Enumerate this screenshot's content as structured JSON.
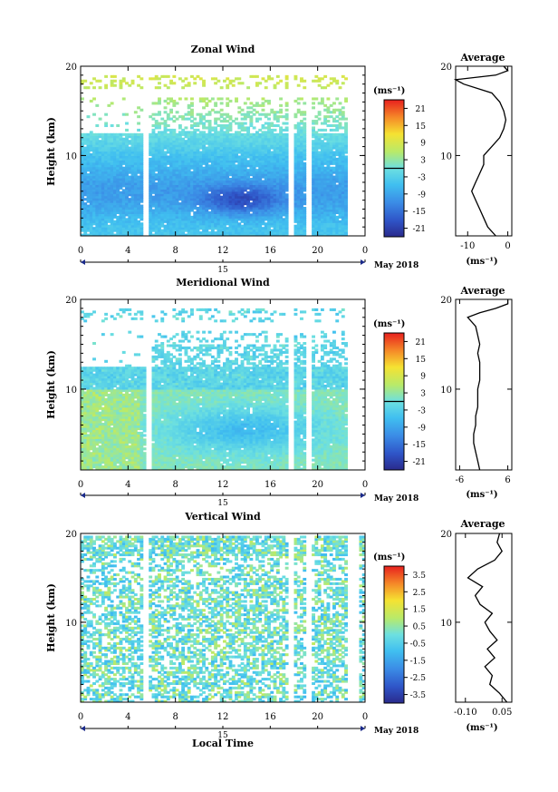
{
  "figure": {
    "xlabel": "Local Time",
    "date_label": "May 2018",
    "date_day": "15"
  },
  "chart_data": [
    {
      "type": "heatmap",
      "title": "Zonal Wind",
      "ylabel": "Height (km)",
      "xlabel": "",
      "unit_label": "(ms⁻¹)",
      "x_ticks": [
        "0",
        "4",
        "8",
        "12",
        "16",
        "20",
        "0"
      ],
      "y_ticks": [
        "10",
        "20"
      ],
      "xlim": [
        0,
        24
      ],
      "ylim": [
        1,
        20
      ],
      "colorbar_ticks": [
        "21",
        "15",
        "9",
        "3",
        "-3",
        "-9",
        "-15",
        "-21"
      ],
      "colorbar_range": [
        -24,
        24
      ],
      "contour_level": 0,
      "description_values": {
        "low_altitude_range_ms": [
          -21,
          0
        ],
        "core_minimum_ms": -21,
        "core_height_km": 5,
        "core_time_h": 13.5
      },
      "data_gaps_hours": [
        [
          5.2,
          5.7
        ],
        [
          17.5,
          17.9
        ],
        [
          19.0,
          19.5
        ],
        [
          22.4,
          24
        ]
      ],
      "average": {
        "title": "Average",
        "xlabel": "(ms⁻¹)",
        "x_ticks": [
          "-10",
          "0"
        ],
        "y_ticks": [
          "10",
          "20"
        ],
        "xlim": [
          -13,
          1
        ],
        "ylim": [
          1,
          20
        ],
        "profile": {
          "height": [
            1,
            2,
            3,
            4,
            5,
            6,
            7,
            8,
            9,
            10,
            11,
            12,
            13,
            14,
            15,
            16,
            17,
            18,
            18.5,
            19,
            19.5,
            20
          ],
          "value": [
            -3,
            -5,
            -6,
            -7,
            -8,
            -9,
            -8,
            -7,
            -6,
            -6,
            -4,
            -2,
            -1,
            -0.5,
            -1,
            -2,
            -4,
            -11,
            -13,
            -3,
            0,
            -1
          ]
        }
      }
    },
    {
      "type": "heatmap",
      "title": "Meridional Wind",
      "ylabel": "Height (km)",
      "xlabel": "",
      "unit_label": "(ms⁻¹)",
      "x_ticks": [
        "0",
        "4",
        "8",
        "12",
        "16",
        "20",
        "0"
      ],
      "y_ticks": [
        "10",
        "20"
      ],
      "xlim": [
        0,
        24
      ],
      "ylim": [
        1,
        20
      ],
      "colorbar_ticks": [
        "21",
        "15",
        "9",
        "3",
        "-3",
        "-9",
        "-15",
        "-21"
      ],
      "colorbar_range": [
        -24,
        24
      ],
      "contour_level": 0,
      "description_values": {
        "low_altitude_range_ms": [
          -9,
          9
        ],
        "core_minimum_ms": -9,
        "core_height_km": 5,
        "core_time_h": 14
      },
      "data_gaps_hours": [
        [
          5.4,
          6.0
        ],
        [
          17.5,
          17.9
        ],
        [
          19.0,
          19.5
        ],
        [
          22.4,
          24
        ]
      ],
      "average": {
        "title": "Average",
        "xlabel": "(ms⁻¹)",
        "x_ticks": [
          "-6",
          "6"
        ],
        "y_ticks": [
          "10",
          "20"
        ],
        "xlim": [
          -7,
          7
        ],
        "ylim": [
          1,
          20
        ],
        "profile": {
          "height": [
            1,
            2,
            3,
            4,
            5,
            6,
            7,
            8,
            9,
            10,
            11,
            12,
            13,
            14,
            15,
            16,
            17,
            18,
            18.5,
            19,
            19.5,
            20
          ],
          "value": [
            -1,
            -1.5,
            -2,
            -2.5,
            -2.5,
            -2,
            -2,
            -1.5,
            -1.5,
            -1.5,
            -1,
            -1,
            -1,
            -1.5,
            -1,
            -1.5,
            -2,
            -4,
            -1,
            3,
            6,
            6
          ]
        }
      }
    },
    {
      "type": "heatmap",
      "title": "Vertical Wind",
      "ylabel": "Height (km)",
      "xlabel": "Local Time",
      "unit_label": "(ms⁻¹)",
      "x_ticks": [
        "0",
        "4",
        "8",
        "12",
        "16",
        "20",
        "0"
      ],
      "y_ticks": [
        "10",
        "20"
      ],
      "xlim": [
        0,
        24
      ],
      "ylim": [
        1,
        20
      ],
      "colorbar_ticks": [
        "3.5",
        "2.5",
        "1.5",
        "0.5",
        "-0.5",
        "-1.5",
        "-2.5",
        "-3.5"
      ],
      "colorbar_range": [
        -4,
        4
      ],
      "description_values": {
        "typical_range_ms": [
          -1,
          1
        ]
      },
      "data_gaps_hours": [
        [
          5.2,
          5.7
        ],
        [
          17.5,
          17.9
        ],
        [
          19.0,
          19.5
        ],
        [
          22.4,
          23.6
        ]
      ],
      "average": {
        "title": "Average",
        "xlabel": "(ms⁻¹)",
        "x_ticks": [
          "-0.10",
          "0.05"
        ],
        "y_ticks": [
          "10",
          "20"
        ],
        "xlim": [
          -0.14,
          0.09
        ],
        "ylim": [
          1,
          20
        ],
        "profile": {
          "height": [
            1,
            2,
            3,
            4,
            5,
            6,
            7,
            8,
            9,
            10,
            11,
            12,
            13,
            14,
            15,
            16,
            17,
            18,
            19,
            20
          ],
          "value": [
            0.07,
            0.04,
            0.0,
            0.01,
            -0.02,
            0.02,
            -0.01,
            0.03,
            0.0,
            -0.02,
            0.01,
            -0.04,
            -0.06,
            -0.03,
            -0.09,
            -0.05,
            0.02,
            0.05,
            0.03,
            0.04
          ]
        }
      }
    }
  ]
}
